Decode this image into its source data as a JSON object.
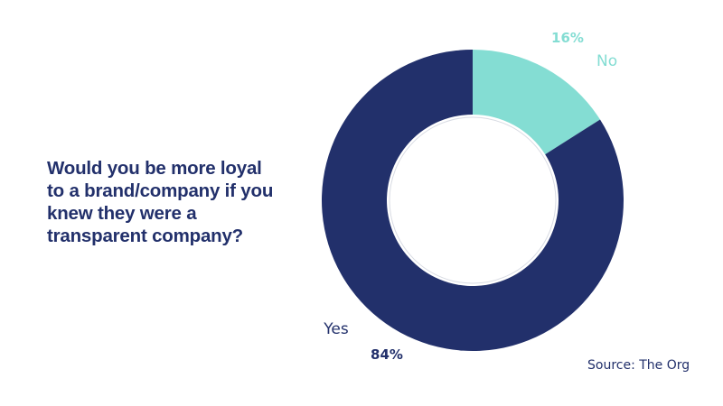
{
  "chart_data": {
    "type": "pie",
    "variant": "donut",
    "title": "Would you be more loyal to a brand/company if you knew they were a transparent company?",
    "slices": [
      {
        "label": "No",
        "value": 16,
        "value_label": "16%",
        "color": "#84ddd3",
        "label_color": "#84ddd3",
        "value_color": "#84ddd3"
      },
      {
        "label": "Yes",
        "value": 84,
        "value_label": "84%",
        "color": "#22306b",
        "label_color": "#22306b",
        "value_color": "#22306b"
      }
    ],
    "legend": false
  },
  "source": "Source: The Org",
  "colors": {
    "navy": "#22306b",
    "teal": "#84ddd3",
    "background": "#ffffff"
  }
}
